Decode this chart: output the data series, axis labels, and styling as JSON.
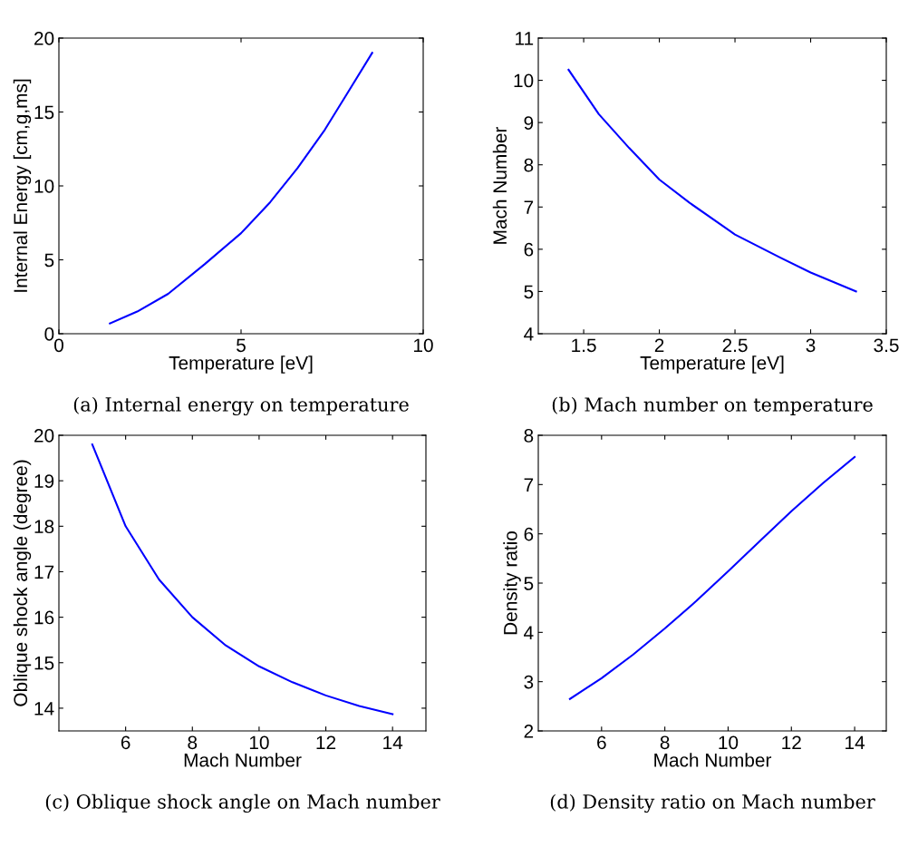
{
  "chart_data": [
    {
      "type": "line",
      "xlabel": "Temperature [eV]",
      "ylabel": "Internal Energy [cm,g,ms]",
      "x": [
        1.4,
        2.15,
        3.0,
        4.0,
        5.0,
        5.8,
        6.55,
        7.3,
        7.9,
        8.6
      ],
      "series": [
        {
          "color": "#0000ff",
          "values": [
            0.7,
            1.5,
            2.7,
            4.7,
            6.8,
            8.9,
            11.2,
            13.8,
            16.2,
            19.0
          ]
        }
      ],
      "xlim": [
        0,
        10
      ],
      "xticks": [
        0,
        5,
        10
      ],
      "ylim": [
        0,
        20
      ],
      "yticks": [
        0,
        5,
        10,
        15,
        20
      ],
      "grid": false,
      "legend": false,
      "annotations": [
        "(a) Internal energy on temperature"
      ]
    },
    {
      "type": "line",
      "xlabel": "Temperature [eV]",
      "ylabel": "Mach Number",
      "x": [
        1.4,
        1.6,
        1.8,
        2.0,
        2.2,
        2.5,
        2.8,
        3.0,
        3.3
      ],
      "series": [
        {
          "color": "#0000ff",
          "values": [
            10.25,
            9.2,
            8.4,
            7.65,
            7.1,
            6.35,
            5.8,
            5.45,
            5.0
          ]
        }
      ],
      "xlim": [
        1.2,
        3.5
      ],
      "xticks": [
        1.5,
        2,
        2.5,
        3,
        3.5
      ],
      "ylim": [
        4,
        11
      ],
      "yticks": [
        4,
        5,
        6,
        7,
        8,
        9,
        10,
        11
      ],
      "grid": false,
      "legend": false,
      "annotations": [
        "(b) Mach number on temperature"
      ]
    },
    {
      "type": "line",
      "xlabel": "Mach Number",
      "ylabel": "Oblique shock angle (degree)",
      "x": [
        5,
        6,
        7,
        8,
        9,
        10,
        11,
        12,
        13,
        14
      ],
      "series": [
        {
          "color": "#0000ff",
          "values": [
            19.8,
            18.0,
            16.83,
            16.0,
            15.38,
            14.92,
            14.57,
            14.28,
            14.05,
            13.87
          ]
        }
      ],
      "xlim": [
        4,
        15
      ],
      "xticks": [
        6,
        8,
        10,
        12,
        14
      ],
      "ylim": [
        13.5,
        20
      ],
      "yticks": [
        14,
        15,
        16,
        17,
        18,
        19,
        20
      ],
      "grid": false,
      "legend": false,
      "annotations": [
        "(c) Oblique shock angle on Mach number"
      ]
    },
    {
      "type": "line",
      "xlabel": "Mach Number",
      "ylabel": "Density ratio",
      "x": [
        5,
        6,
        7,
        8,
        9,
        10,
        11,
        12,
        13,
        14
      ],
      "series": [
        {
          "color": "#0000ff",
          "values": [
            2.65,
            3.07,
            3.55,
            4.08,
            4.64,
            5.24,
            5.85,
            6.46,
            7.03,
            7.56
          ]
        }
      ],
      "xlim": [
        4,
        15
      ],
      "xticks": [
        6,
        8,
        10,
        12,
        14
      ],
      "ylim": [
        2,
        8
      ],
      "yticks": [
        2,
        3,
        4,
        5,
        6,
        7,
        8
      ],
      "grid": false,
      "legend": false,
      "annotations": [
        "(d) Density ratio on Mach number"
      ]
    }
  ]
}
